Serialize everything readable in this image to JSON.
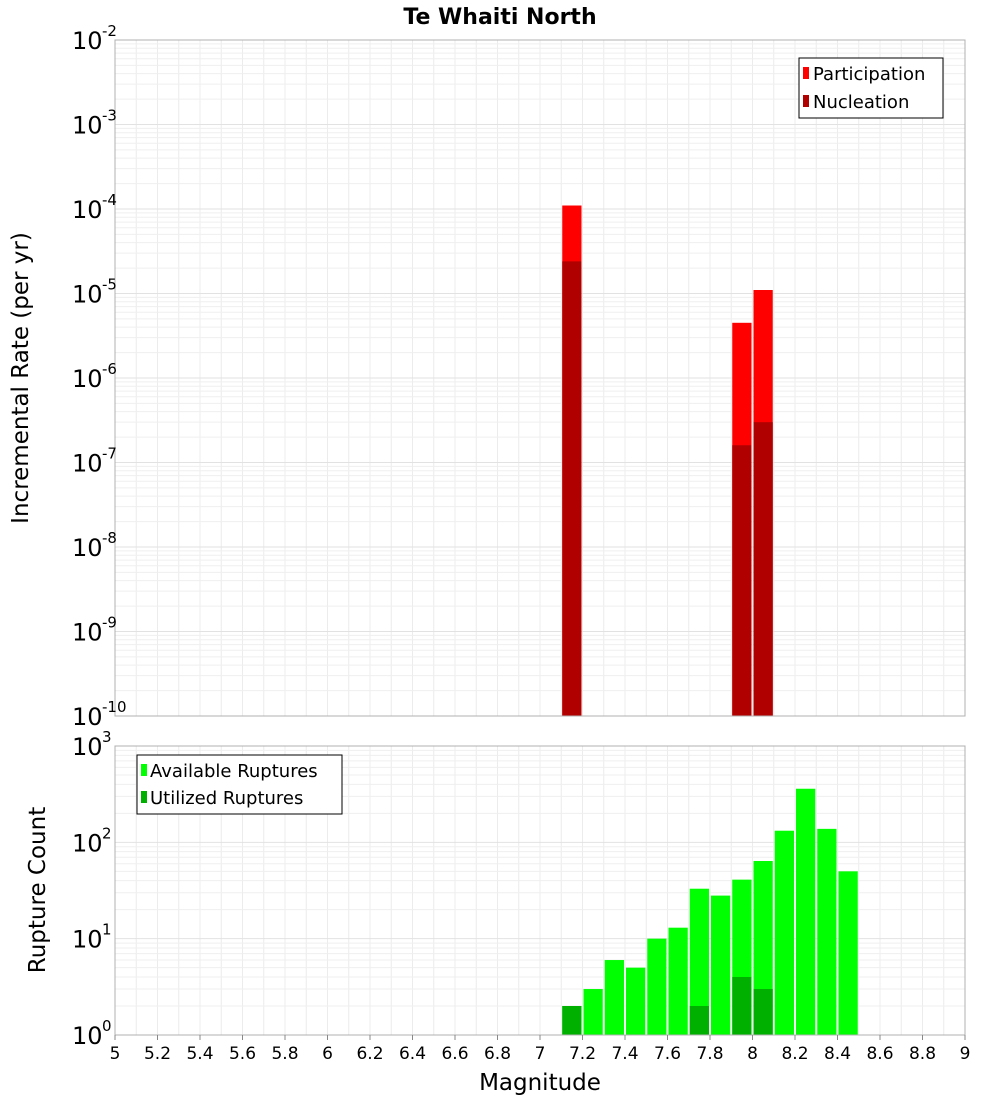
{
  "chart_data": [
    {
      "type": "bar",
      "title": "Te Whaiti North",
      "xlabel": "Magnitude",
      "ylabel": "Incremental Rate (per yr)",
      "yscale": "log",
      "ylim_exponents": [
        -10,
        -2
      ],
      "xlim": [
        5,
        9
      ],
      "legend_position": "top-right",
      "series": [
        {
          "name": "Participation",
          "color": "#ff0000",
          "points": [
            [
              7.15,
              0.00011
            ],
            [
              7.95,
              4.5e-06
            ],
            [
              8.05,
              1.1e-05
            ]
          ]
        },
        {
          "name": "Nucleation",
          "color": "#b00000",
          "points": [
            [
              7.15,
              2.4e-05
            ],
            [
              7.95,
              1.6e-07
            ],
            [
              8.05,
              3e-07
            ]
          ]
        }
      ]
    },
    {
      "type": "bar",
      "xlabel": "Magnitude",
      "ylabel": "Rupture Count",
      "yscale": "log",
      "ylim_exponents": [
        0,
        3
      ],
      "xlim": [
        5,
        9
      ],
      "xticks": [
        "5",
        "5.2",
        "5.4",
        "5.6",
        "5.8",
        "6",
        "6.2",
        "6.4",
        "6.6",
        "6.8",
        "7",
        "7.2",
        "7.4",
        "7.6",
        "7.8",
        "8",
        "8.2",
        "8.4",
        "8.6",
        "8.8",
        "9"
      ],
      "legend_position": "top-left",
      "series": [
        {
          "name": "Available Ruptures",
          "color": "#00ff00",
          "points": [
            [
              6.45,
              1
            ],
            [
              7.05,
              1
            ],
            [
              7.15,
              2
            ],
            [
              7.25,
              3
            ],
            [
              7.35,
              6
            ],
            [
              7.45,
              5
            ],
            [
              7.55,
              10
            ],
            [
              7.65,
              13
            ],
            [
              7.75,
              33
            ],
            [
              7.85,
              28
            ],
            [
              7.95,
              41
            ],
            [
              8.05,
              64
            ],
            [
              8.15,
              132
            ],
            [
              8.25,
              360
            ],
            [
              8.35,
              138
            ],
            [
              8.45,
              50
            ],
            [
              8.55,
              1
            ]
          ]
        },
        {
          "name": "Utilized Ruptures",
          "color": "#00b000",
          "points": [
            [
              7.15,
              2
            ],
            [
              7.75,
              2
            ],
            [
              7.85,
              1
            ],
            [
              7.95,
              4
            ],
            [
              8.05,
              3
            ]
          ]
        }
      ]
    }
  ]
}
